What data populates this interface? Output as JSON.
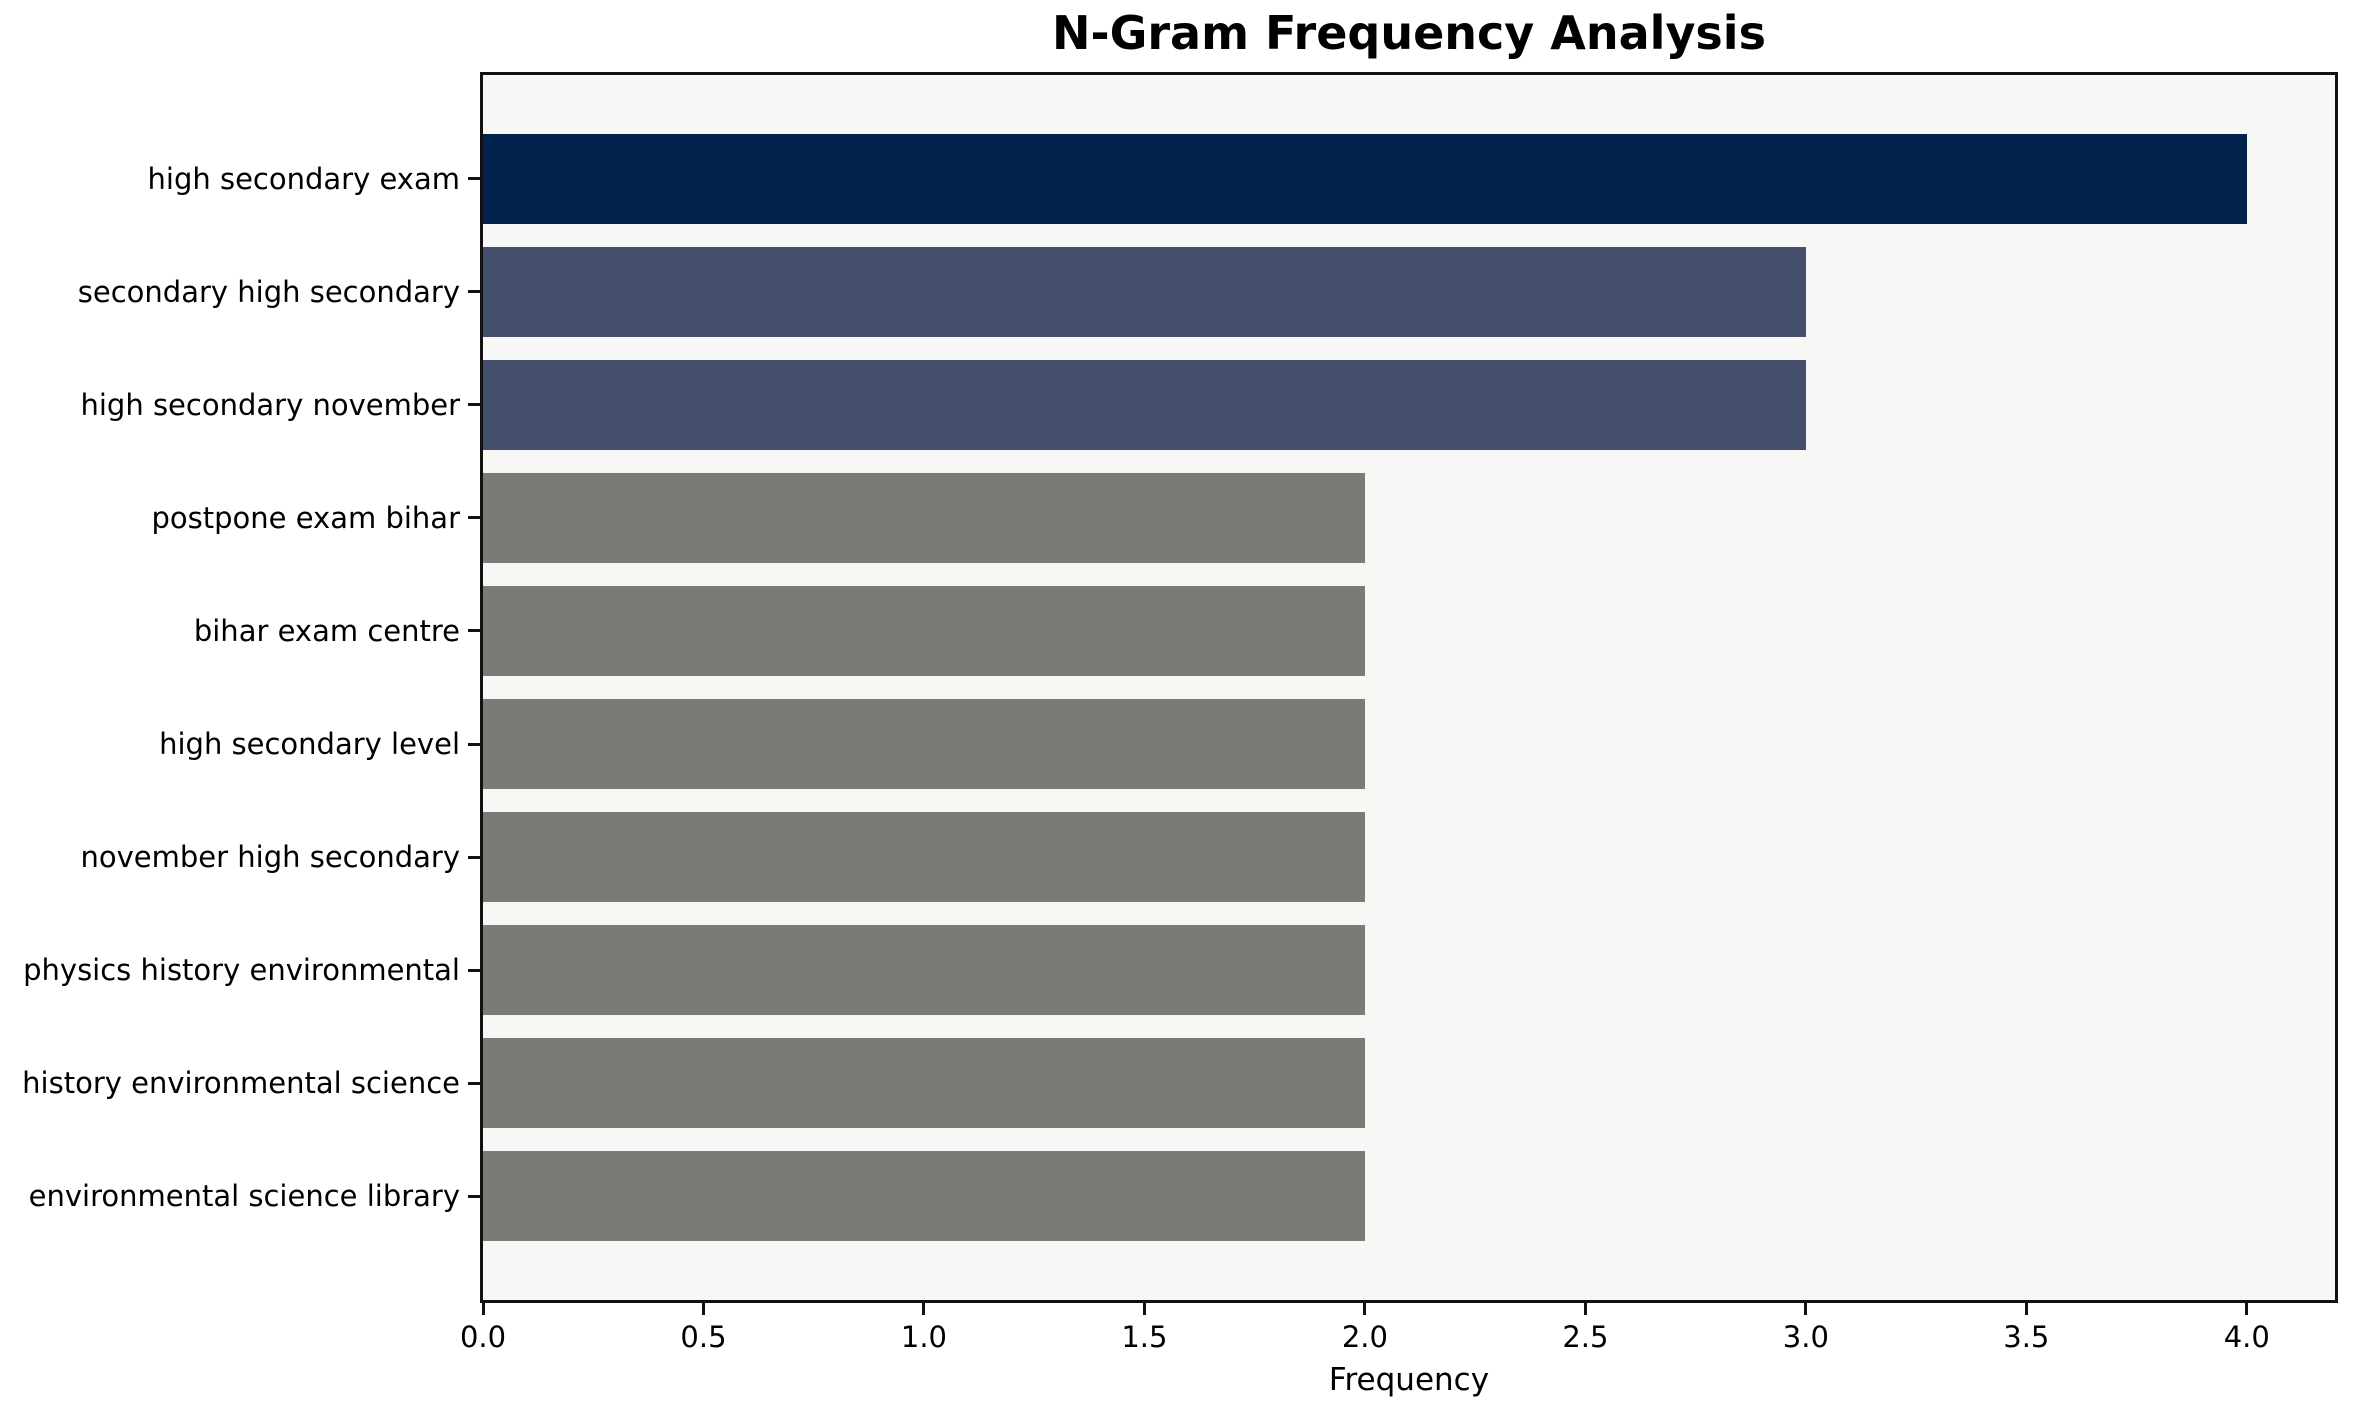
{
  "chart_data": {
    "type": "bar",
    "orientation": "horizontal",
    "title": "N-Gram Frequency Analysis",
    "xlabel": "Frequency",
    "ylabel": "",
    "categories": [
      "high secondary exam",
      "secondary high secondary",
      "high secondary november",
      "postpone exam bihar",
      "bihar exam centre",
      "high secondary level",
      "november high secondary",
      "physics history environmental",
      "history environmental science",
      "environmental science library"
    ],
    "values": [
      4,
      3,
      3,
      2,
      2,
      2,
      2,
      2,
      2,
      2
    ],
    "bar_colors": [
      "#02234d",
      "#434f6c",
      "#434f6c",
      "#7b7a75",
      "#7b7a75",
      "#7b7a75",
      "#7b7a75",
      "#7b7a75",
      "#7b7a75",
      "#7b7a75"
    ],
    "xlim": [
      0,
      4.2
    ],
    "xticks": [
      "0.0",
      "0.5",
      "1.0",
      "1.5",
      "2.0",
      "2.5",
      "3.0",
      "3.5",
      "4.0"
    ],
    "xtick_values": [
      0,
      0.5,
      1,
      1.5,
      2,
      2.5,
      3,
      3.5,
      4
    ],
    "grid": false,
    "legend": false,
    "plot_background": "#f7f7f5",
    "figure_background": "#ffffff",
    "axis_border_color": "#111111"
  }
}
